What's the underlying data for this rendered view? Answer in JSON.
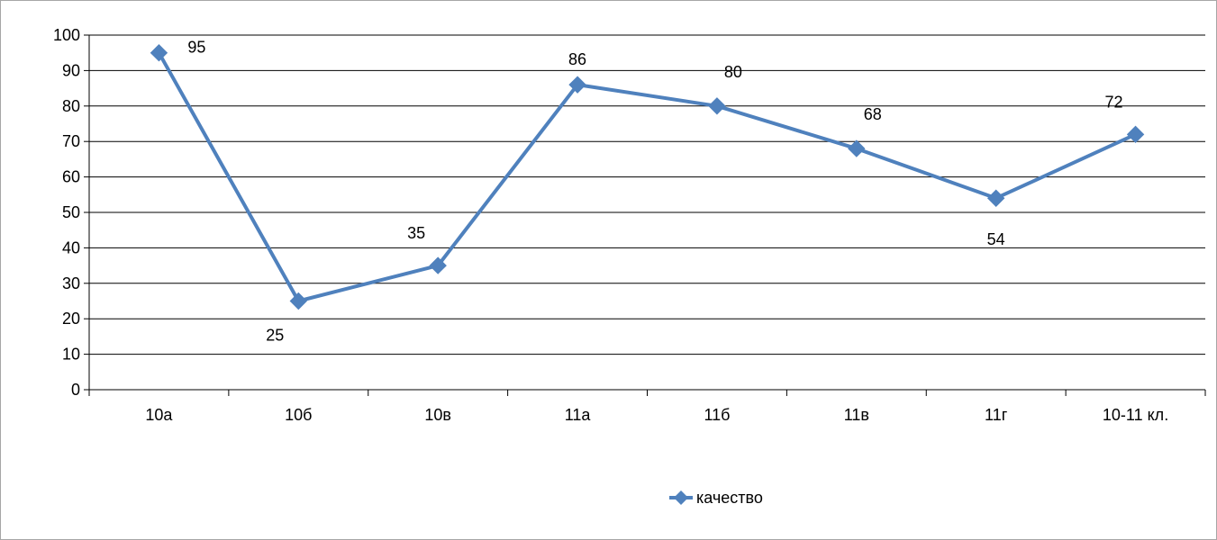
{
  "chart_data": {
    "type": "line",
    "categories": [
      "10а",
      "10б",
      "10в",
      "11а",
      "11б",
      "11в",
      "11г",
      "10-11 кл."
    ],
    "series": [
      {
        "name": "качество",
        "values": [
          95,
          25,
          35,
          86,
          80,
          68,
          54,
          72
        ]
      }
    ],
    "ylim": [
      0,
      100
    ],
    "yticks": [
      0,
      10,
      20,
      30,
      40,
      50,
      60,
      70,
      80,
      90,
      100
    ],
    "grid": true,
    "legend": "bottom",
    "marker": "diamond",
    "data_labels": true,
    "colors": {
      "series": "#4f81bd",
      "grid": "#000000",
      "axis": "#000000"
    }
  }
}
